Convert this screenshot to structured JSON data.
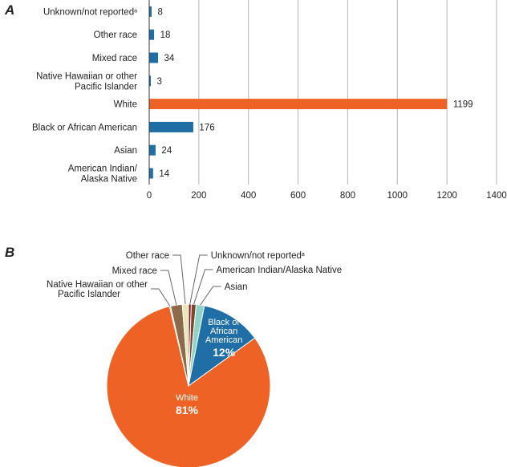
{
  "chart_data": [
    {
      "type": "bar",
      "orientation": "horizontal",
      "panel_label": "A",
      "categories": [
        "Unknown/not reported|a",
        "Other race",
        "Mixed race",
        "Native Hawaiian or other\nPacific Islander",
        "White",
        "Black or African American",
        "Asian",
        "American Indian/\nAlaska Native"
      ],
      "values": [
        8,
        18,
        34,
        3,
        1199,
        176,
        24,
        14
      ],
      "bar_colors": [
        "#1f6ea6",
        "#1f6ea6",
        "#1f6ea6",
        "#1f6ea6",
        "#ee6325",
        "#1f6ea6",
        "#1f6ea6",
        "#1f6ea6"
      ],
      "xlim": [
        0,
        1400
      ],
      "xticks": [
        0,
        200,
        400,
        600,
        800,
        1000,
        1200,
        1400
      ],
      "grid": true,
      "title": "",
      "xlabel": "",
      "ylabel": ""
    },
    {
      "type": "pie",
      "panel_label": "B",
      "slices": [
        {
          "name": "Unknown/not reported",
          "superscript": "a",
          "value": 8,
          "color": "#8b1a2b",
          "label_side": "right"
        },
        {
          "name": "American Indian/Alaska Native",
          "value": 14,
          "color": "#7a4a2a",
          "label_side": "right"
        },
        {
          "name": "Asian",
          "value": 24,
          "color": "#8fd3c8",
          "label_side": "right"
        },
        {
          "name": "Black or African American",
          "value": 176,
          "color": "#1f6ea6",
          "inside_label": "Black or\nAfrican\nAmerican",
          "percent_label": "12%"
        },
        {
          "name": "White",
          "value": 1199,
          "color": "#ee6325",
          "inside_label": "White",
          "percent_label": "81%"
        },
        {
          "name": "Native Hawaiian or other\nPacific Islander",
          "value": 3,
          "color": "#8a8a7a",
          "label_side": "left"
        },
        {
          "name": "Mixed race",
          "value": 34,
          "color": "#8c6a4a",
          "label_side": "left"
        },
        {
          "name": "Other race",
          "value": 18,
          "color": "#ebe6b8",
          "label_side": "left"
        }
      ]
    }
  ]
}
